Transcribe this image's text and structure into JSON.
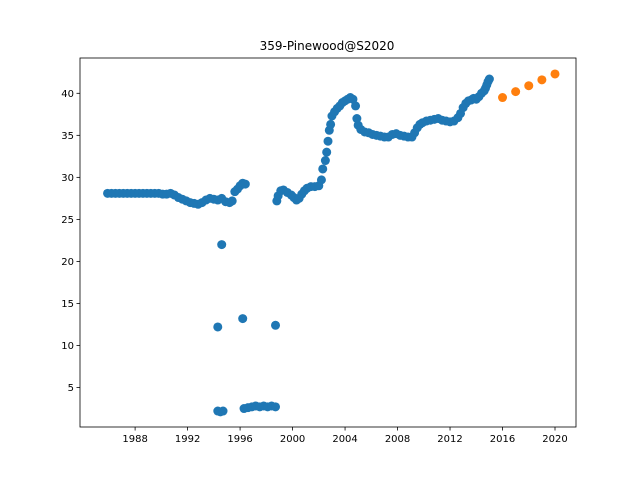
{
  "chart_data": {
    "type": "scatter",
    "title": "359-Pinewood@S2020",
    "xlabel": "",
    "ylabel": "",
    "xlim": [
      1983.8,
      2021.6
    ],
    "ylim": [
      0.3,
      44.2
    ],
    "x_ticks": [
      1988,
      1992,
      1996,
      2000,
      2004,
      2008,
      2012,
      2016,
      2020
    ],
    "y_ticks": [
      5,
      10,
      15,
      20,
      25,
      30,
      35,
      40
    ],
    "grid": false,
    "legend": "none",
    "series": [
      {
        "color": "#1f77b4",
        "points": [
          [
            1985.9,
            28.1
          ],
          [
            1986.2,
            28.1
          ],
          [
            1986.5,
            28.1
          ],
          [
            1986.8,
            28.1
          ],
          [
            1987.1,
            28.1
          ],
          [
            1987.4,
            28.1
          ],
          [
            1987.7,
            28.1
          ],
          [
            1988.0,
            28.1
          ],
          [
            1988.3,
            28.1
          ],
          [
            1988.6,
            28.1
          ],
          [
            1988.9,
            28.1
          ],
          [
            1989.2,
            28.1
          ],
          [
            1989.5,
            28.1
          ],
          [
            1989.8,
            28.1
          ],
          [
            1990.1,
            28.0
          ],
          [
            1990.4,
            28.0
          ],
          [
            1990.7,
            28.1
          ],
          [
            1991.0,
            27.9
          ],
          [
            1991.3,
            27.6
          ],
          [
            1991.6,
            27.4
          ],
          [
            1991.9,
            27.2
          ],
          [
            1992.2,
            27.0
          ],
          [
            1992.5,
            26.9
          ],
          [
            1992.8,
            26.8
          ],
          [
            1993.1,
            27.0
          ],
          [
            1993.4,
            27.3
          ],
          [
            1993.7,
            27.5
          ],
          [
            1994.0,
            27.4
          ],
          [
            1994.3,
            27.3
          ],
          [
            1994.6,
            27.5
          ],
          [
            1994.9,
            27.1
          ],
          [
            1995.2,
            27.0
          ],
          [
            1995.4,
            27.2
          ],
          [
            1995.6,
            28.3
          ],
          [
            1995.8,
            28.6
          ],
          [
            1996.0,
            29.0
          ],
          [
            1996.2,
            29.3
          ],
          [
            1996.4,
            29.2
          ],
          [
            1994.3,
            12.2
          ],
          [
            1994.6,
            22.0
          ],
          [
            1996.2,
            13.2
          ],
          [
            1998.7,
            12.4
          ],
          [
            1994.3,
            2.2
          ],
          [
            1994.5,
            2.1
          ],
          [
            1994.7,
            2.2
          ],
          [
            1996.3,
            2.5
          ],
          [
            1996.6,
            2.6
          ],
          [
            1996.9,
            2.7
          ],
          [
            1997.2,
            2.8
          ],
          [
            1997.5,
            2.7
          ],
          [
            1997.8,
            2.8
          ],
          [
            1998.1,
            2.7
          ],
          [
            1998.4,
            2.8
          ],
          [
            1998.7,
            2.7
          ],
          [
            1998.8,
            27.2
          ],
          [
            1998.9,
            27.8
          ],
          [
            1999.1,
            28.4
          ],
          [
            1999.3,
            28.5
          ],
          [
            1999.6,
            28.2
          ],
          [
            1999.9,
            27.9
          ],
          [
            2000.1,
            27.6
          ],
          [
            2000.3,
            27.3
          ],
          [
            2000.5,
            27.5
          ],
          [
            2000.7,
            28.0
          ],
          [
            2000.9,
            28.4
          ],
          [
            2001.1,
            28.7
          ],
          [
            2001.4,
            28.9
          ],
          [
            2001.7,
            28.9
          ],
          [
            2002.0,
            29.0
          ],
          [
            2002.2,
            29.7
          ],
          [
            2002.3,
            31.0
          ],
          [
            2002.5,
            32.0
          ],
          [
            2002.6,
            33.0
          ],
          [
            2002.7,
            34.3
          ],
          [
            2002.8,
            35.6
          ],
          [
            2002.9,
            36.3
          ],
          [
            2003.0,
            37.3
          ],
          [
            2003.2,
            37.8
          ],
          [
            2003.4,
            38.2
          ],
          [
            2003.6,
            38.5
          ],
          [
            2003.8,
            38.9
          ],
          [
            2004.0,
            39.1
          ],
          [
            2004.2,
            39.3
          ],
          [
            2004.4,
            39.5
          ],
          [
            2004.6,
            39.3
          ],
          [
            2004.8,
            38.5
          ],
          [
            2004.9,
            37.0
          ],
          [
            2005.0,
            36.2
          ],
          [
            2005.2,
            35.7
          ],
          [
            2005.5,
            35.4
          ],
          [
            2005.8,
            35.3
          ],
          [
            2006.1,
            35.1
          ],
          [
            2006.4,
            35.0
          ],
          [
            2006.7,
            34.9
          ],
          [
            2007.0,
            34.8
          ],
          [
            2007.3,
            34.8
          ],
          [
            2007.6,
            35.1
          ],
          [
            2007.9,
            35.2
          ],
          [
            2008.2,
            35.0
          ],
          [
            2008.5,
            34.9
          ],
          [
            2008.8,
            34.8
          ],
          [
            2009.1,
            34.8
          ],
          [
            2009.3,
            35.3
          ],
          [
            2009.5,
            35.9
          ],
          [
            2009.7,
            36.3
          ],
          [
            2009.9,
            36.5
          ],
          [
            2010.2,
            36.7
          ],
          [
            2010.5,
            36.8
          ],
          [
            2010.8,
            36.9
          ],
          [
            2011.1,
            37.0
          ],
          [
            2011.4,
            36.8
          ],
          [
            2011.7,
            36.7
          ],
          [
            2012.0,
            36.6
          ],
          [
            2012.3,
            36.7
          ],
          [
            2012.6,
            37.1
          ],
          [
            2012.8,
            37.6
          ],
          [
            2013.0,
            38.3
          ],
          [
            2013.2,
            38.8
          ],
          [
            2013.4,
            39.1
          ],
          [
            2013.6,
            39.2
          ],
          [
            2013.8,
            39.4
          ],
          [
            2014.0,
            39.3
          ],
          [
            2014.2,
            39.6
          ],
          [
            2014.4,
            40.0
          ],
          [
            2014.6,
            40.3
          ],
          [
            2014.7,
            40.6
          ],
          [
            2014.8,
            41.0
          ],
          [
            2014.9,
            41.4
          ],
          [
            2015.0,
            41.7
          ]
        ]
      },
      {
        "color": "#ff7f0e",
        "points": [
          [
            2016.0,
            39.5
          ],
          [
            2017.0,
            40.2
          ],
          [
            2018.0,
            40.9
          ],
          [
            2019.0,
            41.6
          ],
          [
            2020.0,
            42.3
          ]
        ]
      }
    ]
  }
}
